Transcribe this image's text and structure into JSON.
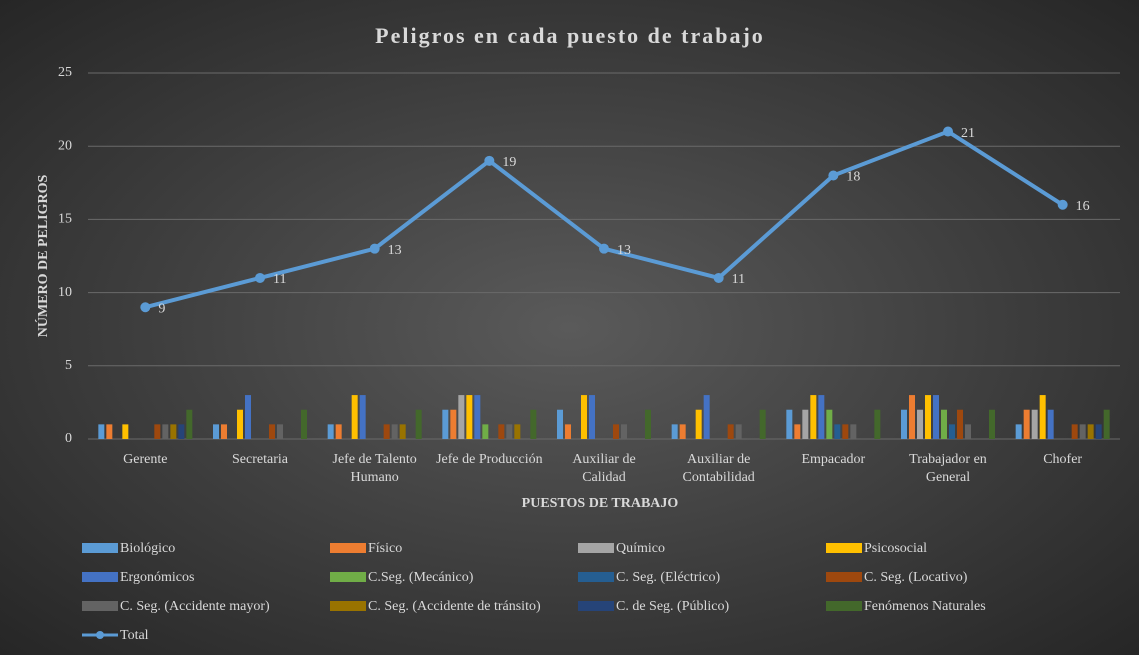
{
  "chart_data": {
    "type": "bar",
    "title": "Peligros en cada puesto de trabajo",
    "x_label": "PUESTOS DE TRABAJO",
    "y_label": "NÚMERO DE PELIGROS",
    "categories": [
      "Gerente",
      "Secretaria",
      "Jefe de Talento Humano",
      "Jefe de Producción",
      "Auxiliar de Calidad",
      "Auxiliar de Contabilidad",
      "Empacador",
      "Trabajador en General",
      "Chofer"
    ],
    "ylim": [
      0,
      25
    ],
    "yticks": [
      0,
      5,
      10,
      15,
      20,
      25
    ],
    "grid": true,
    "legend": "bottom",
    "series": [
      {
        "name": "Biológico",
        "color": "#5b9bd5",
        "values": [
          1,
          1,
          1,
          2,
          2,
          1,
          2,
          2,
          1
        ]
      },
      {
        "name": "Físico",
        "color": "#ed7d31",
        "values": [
          1,
          1,
          1,
          2,
          1,
          1,
          1,
          3,
          2
        ]
      },
      {
        "name": "Químico",
        "color": "#a5a5a5",
        "values": [
          0,
          0,
          0,
          3,
          0,
          0,
          2,
          2,
          2
        ]
      },
      {
        "name": "Psicosocial",
        "color": "#ffc000",
        "values": [
          1,
          2,
          3,
          3,
          3,
          2,
          3,
          3,
          3
        ]
      },
      {
        "name": "Ergonómicos",
        "color": "#4472c4",
        "values": [
          0,
          3,
          3,
          3,
          3,
          3,
          3,
          3,
          2
        ]
      },
      {
        "name": "C.Seg. (Mecánico)",
        "color": "#70ad47",
        "values": [
          0,
          0,
          0,
          1,
          0,
          0,
          2,
          2,
          0
        ]
      },
      {
        "name": "C. Seg. (Eléctrico)",
        "color": "#255e91",
        "values": [
          0,
          0,
          0,
          0,
          0,
          0,
          1,
          1,
          0
        ]
      },
      {
        "name": "C. Seg. (Locativo)",
        "color": "#9e480e",
        "values": [
          1,
          1,
          1,
          1,
          1,
          1,
          1,
          2,
          1
        ]
      },
      {
        "name": "C. Seg. (Accidente mayor)",
        "color": "#636363",
        "values": [
          1,
          1,
          1,
          1,
          1,
          1,
          1,
          1,
          1
        ]
      },
      {
        "name": "C. Seg. (Accidente de tránsito)",
        "color": "#997300",
        "values": [
          1,
          0,
          1,
          1,
          0,
          0,
          0,
          0,
          1
        ]
      },
      {
        "name": "C. de Seg. (Público)",
        "color": "#264478",
        "values": [
          1,
          0,
          0,
          0,
          0,
          0,
          0,
          0,
          1
        ]
      },
      {
        "name": "Fenómenos Naturales",
        "color": "#43682b",
        "values": [
          2,
          2,
          2,
          2,
          2,
          2,
          2,
          2,
          2
        ]
      },
      {
        "name": "Total",
        "color": "#5b9bd5",
        "type": "line",
        "values": [
          9,
          11,
          13,
          19,
          13,
          11,
          18,
          21,
          16
        ]
      }
    ]
  }
}
